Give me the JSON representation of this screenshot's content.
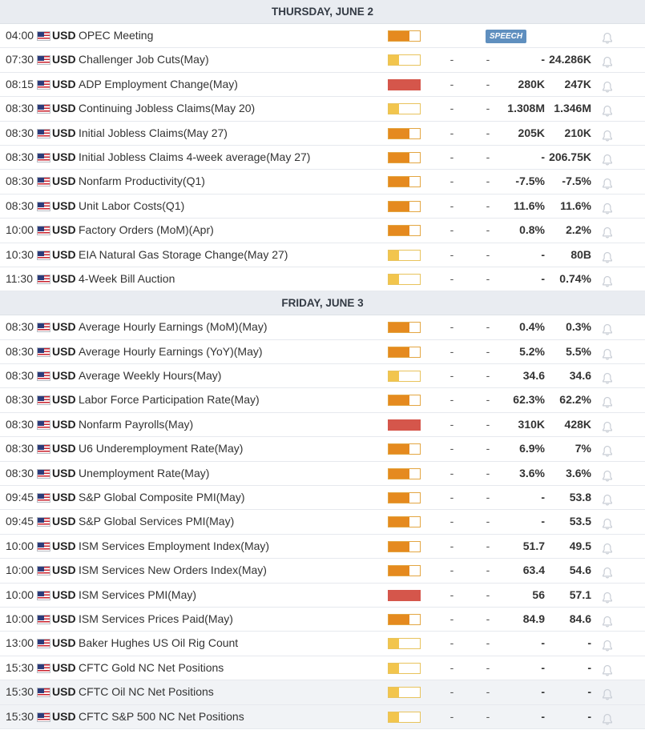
{
  "colors": {
    "impact_high": "#d5564b",
    "impact_medium": "#e58a1f",
    "impact_low": "#f2c54d",
    "speech_badge": "#5f8fbf"
  },
  "days": [
    {
      "header": "THURSDAY, JUNE 2",
      "events": [
        {
          "time": "04:00",
          "currency": "USD",
          "name": "OPEC Meeting",
          "impact": "medium",
          "badge": "SPEECH"
        },
        {
          "time": "07:30",
          "currency": "USD",
          "name": "Challenger Job Cuts(May)",
          "impact": "low",
          "actual": "-",
          "consensus": "-",
          "forecast": "-",
          "previous": "24.286K"
        },
        {
          "time": "08:15",
          "currency": "USD",
          "name": "ADP Employment Change(May)",
          "impact": "high",
          "actual": "-",
          "consensus": "-",
          "forecast": "280K",
          "previous": "247K"
        },
        {
          "time": "08:30",
          "currency": "USD",
          "name": "Continuing Jobless Claims(May 20)",
          "impact": "low",
          "actual": "-",
          "consensus": "-",
          "forecast": "1.308M",
          "previous": "1.346M"
        },
        {
          "time": "08:30",
          "currency": "USD",
          "name": "Initial Jobless Claims(May 27)",
          "impact": "medium",
          "actual": "-",
          "consensus": "-",
          "forecast": "205K",
          "previous": "210K"
        },
        {
          "time": "08:30",
          "currency": "USD",
          "name": "Initial Jobless Claims 4-week average(May 27)",
          "impact": "medium",
          "actual": "-",
          "consensus": "-",
          "forecast": "-",
          "previous": "206.75K"
        },
        {
          "time": "08:30",
          "currency": "USD",
          "name": "Nonfarm Productivity(Q1)",
          "impact": "medium",
          "actual": "-",
          "consensus": "-",
          "forecast": "-7.5%",
          "previous": "-7.5%"
        },
        {
          "time": "08:30",
          "currency": "USD",
          "name": "Unit Labor Costs(Q1)",
          "impact": "medium",
          "actual": "-",
          "consensus": "-",
          "forecast": "11.6%",
          "previous": "11.6%"
        },
        {
          "time": "10:00",
          "currency": "USD",
          "name": "Factory Orders (MoM)(Apr)",
          "impact": "medium",
          "actual": "-",
          "consensus": "-",
          "forecast": "0.8%",
          "previous": "2.2%"
        },
        {
          "time": "10:30",
          "currency": "USD",
          "name": "EIA Natural Gas Storage Change(May 27)",
          "impact": "low",
          "actual": "-",
          "consensus": "-",
          "forecast": "-",
          "previous": "80B"
        },
        {
          "time": "11:30",
          "currency": "USD",
          "name": "4-Week Bill Auction",
          "impact": "low",
          "actual": "-",
          "consensus": "-",
          "forecast": "-",
          "previous": "0.74%"
        }
      ]
    },
    {
      "header": "FRIDAY, JUNE 3",
      "events": [
        {
          "time": "08:30",
          "currency": "USD",
          "name": "Average Hourly Earnings (MoM)(May)",
          "impact": "medium",
          "actual": "-",
          "consensus": "-",
          "forecast": "0.4%",
          "previous": "0.3%"
        },
        {
          "time": "08:30",
          "currency": "USD",
          "name": "Average Hourly Earnings (YoY)(May)",
          "impact": "medium",
          "actual": "-",
          "consensus": "-",
          "forecast": "5.2%",
          "previous": "5.5%"
        },
        {
          "time": "08:30",
          "currency": "USD",
          "name": "Average Weekly Hours(May)",
          "impact": "low",
          "actual": "-",
          "consensus": "-",
          "forecast": "34.6",
          "previous": "34.6"
        },
        {
          "time": "08:30",
          "currency": "USD",
          "name": "Labor Force Participation Rate(May)",
          "impact": "medium",
          "actual": "-",
          "consensus": "-",
          "forecast": "62.3%",
          "previous": "62.2%"
        },
        {
          "time": "08:30",
          "currency": "USD",
          "name": "Nonfarm Payrolls(May)",
          "impact": "high",
          "actual": "-",
          "consensus": "-",
          "forecast": "310K",
          "previous": "428K"
        },
        {
          "time": "08:30",
          "currency": "USD",
          "name": "U6 Underemployment Rate(May)",
          "impact": "medium",
          "actual": "-",
          "consensus": "-",
          "forecast": "6.9%",
          "previous": "7%"
        },
        {
          "time": "08:30",
          "currency": "USD",
          "name": "Unemployment Rate(May)",
          "impact": "medium",
          "actual": "-",
          "consensus": "-",
          "forecast": "3.6%",
          "previous": "3.6%"
        },
        {
          "time": "09:45",
          "currency": "USD",
          "name": "S&P Global Composite PMI(May)",
          "impact": "medium",
          "actual": "-",
          "consensus": "-",
          "forecast": "-",
          "previous": "53.8"
        },
        {
          "time": "09:45",
          "currency": "USD",
          "name": "S&P Global Services PMI(May)",
          "impact": "medium",
          "actual": "-",
          "consensus": "-",
          "forecast": "-",
          "previous": "53.5"
        },
        {
          "time": "10:00",
          "currency": "USD",
          "name": "ISM Services Employment Index(May)",
          "impact": "medium",
          "actual": "-",
          "consensus": "-",
          "forecast": "51.7",
          "previous": "49.5"
        },
        {
          "time": "10:00",
          "currency": "USD",
          "name": "ISM Services New Orders Index(May)",
          "impact": "medium",
          "actual": "-",
          "consensus": "-",
          "forecast": "63.4",
          "previous": "54.6"
        },
        {
          "time": "10:00",
          "currency": "USD",
          "name": "ISM Services PMI(May)",
          "impact": "high",
          "actual": "-",
          "consensus": "-",
          "forecast": "56",
          "previous": "57.1"
        },
        {
          "time": "10:00",
          "currency": "USD",
          "name": "ISM Services Prices Paid(May)",
          "impact": "medium",
          "actual": "-",
          "consensus": "-",
          "forecast": "84.9",
          "previous": "84.6"
        },
        {
          "time": "13:00",
          "currency": "USD",
          "name": "Baker Hughes US Oil Rig Count",
          "impact": "low",
          "actual": "-",
          "consensus": "-",
          "forecast": "-",
          "previous": "-"
        },
        {
          "time": "15:30",
          "currency": "USD",
          "name": "CFTC Gold NC Net Positions",
          "impact": "low",
          "actual": "-",
          "consensus": "-",
          "forecast": "-",
          "previous": "-"
        },
        {
          "time": "15:30",
          "currency": "USD",
          "name": "CFTC Oil NC Net Positions",
          "impact": "low",
          "actual": "-",
          "consensus": "-",
          "forecast": "-",
          "previous": "-",
          "highlighted": true
        },
        {
          "time": "15:30",
          "currency": "USD",
          "name": "CFTC S&P 500 NC Net Positions",
          "impact": "low",
          "actual": "-",
          "consensus": "-",
          "forecast": "-",
          "previous": "-",
          "highlighted": true
        }
      ]
    }
  ]
}
